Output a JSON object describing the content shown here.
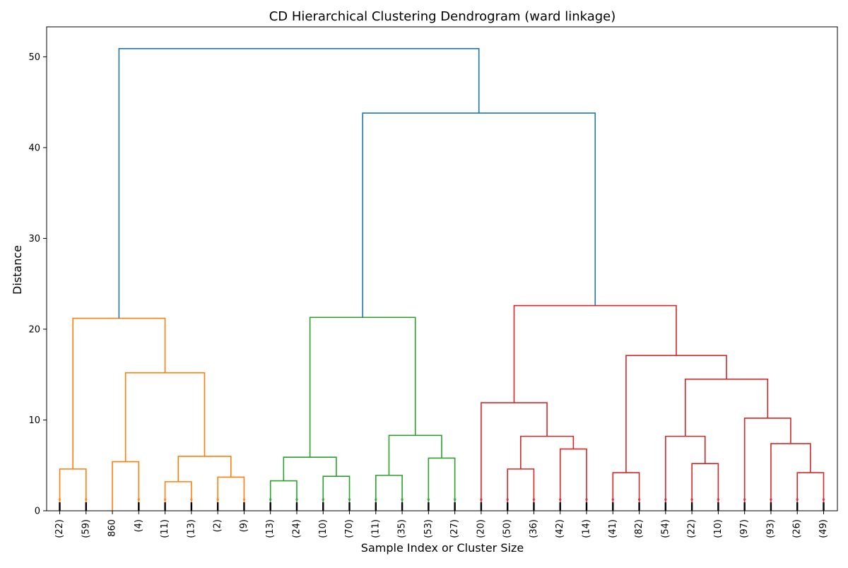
{
  "chart_data": {
    "type": "dendrogram",
    "title": "CD Hierarchical Clustering Dendrogram (ward linkage)",
    "xlabel": "Sample Index or Cluster Size",
    "ylabel": "Distance",
    "ylim": [
      0,
      53.3
    ],
    "yticks": [
      0,
      10,
      20,
      30,
      40,
      50
    ],
    "grid": false,
    "leaves": [
      "(22)",
      "(59)",
      "860",
      "(4)",
      "(11)",
      "(13)",
      "(2)",
      "(9)",
      "(13)",
      "(24)",
      "(10)",
      "(70)",
      "(11)",
      "(35)",
      "(53)",
      "(27)",
      "(20)",
      "(50)",
      "(36)",
      "(42)",
      "(14)",
      "(41)",
      "(82)",
      "(54)",
      "(22)",
      "(10)",
      "(97)",
      "(93)",
      "(26)",
      "(49)"
    ],
    "colors": {
      "above_threshold": "#1f77b4",
      "cluster_1": "#ff7f0e",
      "cluster_2": "#2ca02c",
      "cluster_3": "#d62728"
    },
    "merges": [
      {
        "left": "leaf:0",
        "right": "leaf:1",
        "height": 4.6,
        "color": "cluster_1"
      },
      {
        "left": "leaf:2",
        "right": "leaf:3",
        "height": 5.4,
        "color": "cluster_1"
      },
      {
        "left": "leaf:4",
        "right": "leaf:5",
        "height": 3.2,
        "color": "cluster_1"
      },
      {
        "left": "leaf:6",
        "right": "leaf:7",
        "height": 3.7,
        "color": "cluster_1"
      },
      {
        "left": "node:2",
        "right": "node:3",
        "height": 6.0,
        "color": "cluster_1"
      },
      {
        "left": "node:1",
        "right": "node:4",
        "height": 15.2,
        "color": "cluster_1"
      },
      {
        "left": "node:0",
        "right": "node:5",
        "height": 21.2,
        "color": "cluster_1"
      },
      {
        "left": "leaf:8",
        "right": "leaf:9",
        "height": 3.3,
        "color": "cluster_2"
      },
      {
        "left": "leaf:10",
        "right": "leaf:11",
        "height": 3.8,
        "color": "cluster_2"
      },
      {
        "left": "node:7",
        "right": "node:8",
        "height": 5.9,
        "color": "cluster_2"
      },
      {
        "left": "leaf:12",
        "right": "leaf:13",
        "height": 3.9,
        "color": "cluster_2"
      },
      {
        "left": "leaf:14",
        "right": "leaf:15",
        "height": 5.8,
        "color": "cluster_2"
      },
      {
        "left": "node:10",
        "right": "node:11",
        "height": 8.3,
        "color": "cluster_2"
      },
      {
        "left": "node:9",
        "right": "node:12",
        "height": 21.3,
        "color": "cluster_2"
      },
      {
        "left": "leaf:17",
        "right": "leaf:18",
        "height": 4.6,
        "color": "cluster_3"
      },
      {
        "left": "leaf:19",
        "right": "leaf:20",
        "height": 6.8,
        "color": "cluster_3"
      },
      {
        "left": "node:14",
        "right": "node:15",
        "height": 8.2,
        "color": "cluster_3"
      },
      {
        "left": "leaf:16",
        "right": "node:16",
        "height": 11.9,
        "color": "cluster_3"
      },
      {
        "left": "leaf:21",
        "right": "leaf:22",
        "height": 4.2,
        "color": "cluster_3"
      },
      {
        "left": "leaf:24",
        "right": "leaf:25",
        "height": 5.2,
        "color": "cluster_3"
      },
      {
        "left": "leaf:23",
        "right": "node:19",
        "height": 8.2,
        "color": "cluster_3"
      },
      {
        "left": "leaf:28",
        "right": "leaf:29",
        "height": 4.2,
        "color": "cluster_3"
      },
      {
        "left": "leaf:27",
        "right": "node:21",
        "height": 7.4,
        "color": "cluster_3"
      },
      {
        "left": "leaf:26",
        "right": "node:22",
        "height": 10.2,
        "color": "cluster_3"
      },
      {
        "left": "node:20",
        "right": "node:23",
        "height": 14.5,
        "color": "cluster_3"
      },
      {
        "left": "node:18",
        "right": "node:24",
        "height": 17.1,
        "color": "cluster_3"
      },
      {
        "left": "node:17",
        "right": "node:25",
        "height": 22.6,
        "color": "cluster_3"
      },
      {
        "left": "node:13",
        "right": "node:26",
        "height": 43.8,
        "color": "above_threshold"
      },
      {
        "left": "node:6",
        "right": "node:27",
        "height": 50.9,
        "color": "above_threshold"
      }
    ]
  }
}
